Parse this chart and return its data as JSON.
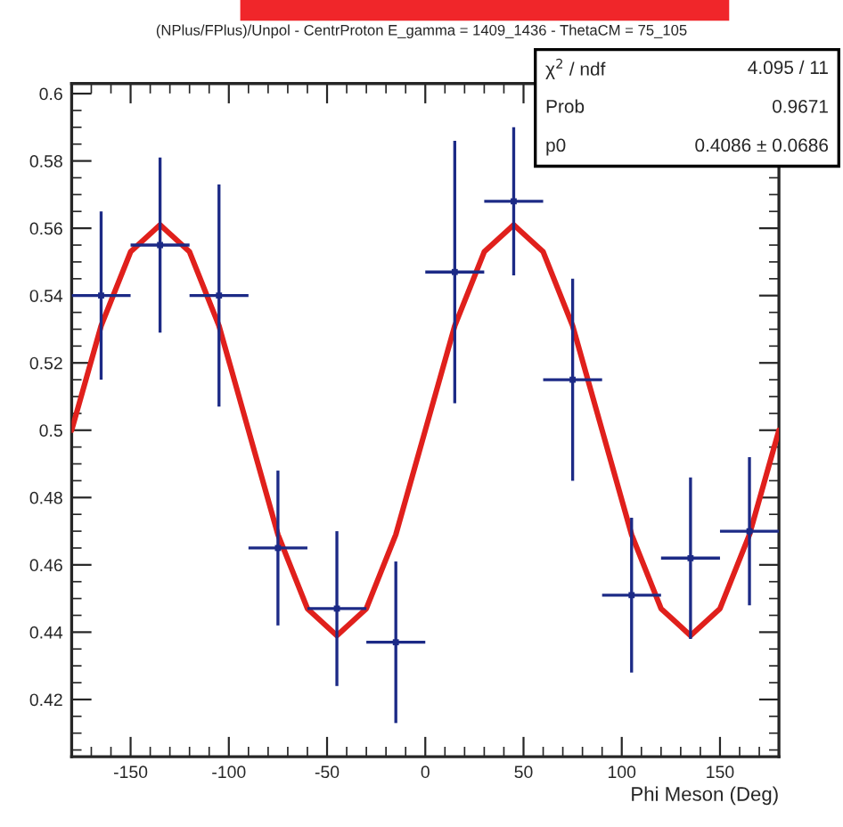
{
  "chart_data": {
    "type": "scatter",
    "subtitle": "(NPlus/FPlus)/Unpol - CentrProton E_gamma = 1409_1436 - ThetaCM = 75_105",
    "xlabel": "Phi Meson (Deg)",
    "xlim": [
      -180,
      180
    ],
    "xticks": [
      -150,
      -100,
      -50,
      0,
      50,
      100,
      150
    ],
    "ylim": [
      0.403,
      0.603
    ],
    "yticks": [
      0.42,
      0.44,
      0.46,
      0.48,
      0.5,
      0.52,
      0.54,
      0.56,
      0.58,
      0.6
    ],
    "grid": false,
    "legend": false,
    "annotations": [
      "χ$^{2}$ / ndf",
      "4.095 / 11",
      "Prob",
      "0.9671",
      "p0",
      "0.4086 ± 0.0686"
    ],
    "series": [
      {
        "color": "#1c2a86",
        "x": [
          -165,
          -135,
          -105,
          -75,
          -45,
          -15,
          15,
          45,
          75,
          105,
          135,
          165
        ],
        "values": [
          0.54,
          0.555,
          0.54,
          0.465,
          0.447,
          0.437,
          0.547,
          0.568,
          0.515,
          0.451,
          0.462,
          0.47
        ],
        "errors": [
          0.025,
          0.026,
          0.033,
          0.023,
          0.023,
          0.024,
          0.039,
          0.022,
          0.03,
          0.023,
          0.024,
          0.022
        ],
        "xerrors": [
          15,
          15,
          15,
          15,
          15,
          15,
          15,
          15,
          15,
          15,
          15,
          15
        ]
      },
      {
        "type": "line",
        "color": "#e0201c",
        "line_style": "solid",
        "x": [
          -180,
          -165,
          -150,
          -135,
          -120,
          -105,
          -90,
          -75,
          -60,
          -45,
          -30,
          -15,
          0,
          15,
          30,
          45,
          60,
          75,
          90,
          105,
          120,
          135,
          150,
          165,
          180
        ],
        "values": [
          0.5,
          0.531,
          0.553,
          0.561,
          0.553,
          0.531,
          0.5,
          0.469,
          0.447,
          0.439,
          0.447,
          0.469,
          0.5,
          0.531,
          0.553,
          0.561,
          0.553,
          0.531,
          0.5,
          0.469,
          0.447,
          0.439,
          0.447,
          0.469,
          0.5
        ]
      }
    ]
  }
}
